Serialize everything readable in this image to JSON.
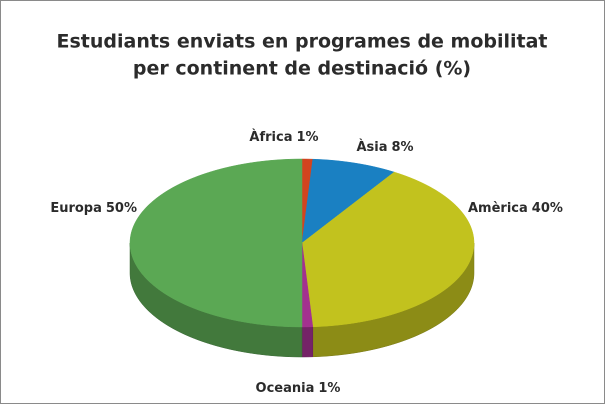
{
  "chart_data": {
    "type": "pie3d",
    "title": [
      "Estudiants enviats en programes de mobilitat",
      "per continent de destinació (%)"
    ],
    "categories": [
      "Àfrica",
      "Àsia",
      "Amèrica",
      "Oceania",
      "Europa"
    ],
    "values": [
      1,
      8,
      40,
      1,
      50
    ],
    "value_labels": [
      "1%",
      "8%",
      "40%",
      "1%",
      "50%"
    ],
    "colors": [
      "#d2441f",
      "#1a80c2",
      "#c2c21e",
      "#a3318f",
      "#5ba854"
    ]
  }
}
